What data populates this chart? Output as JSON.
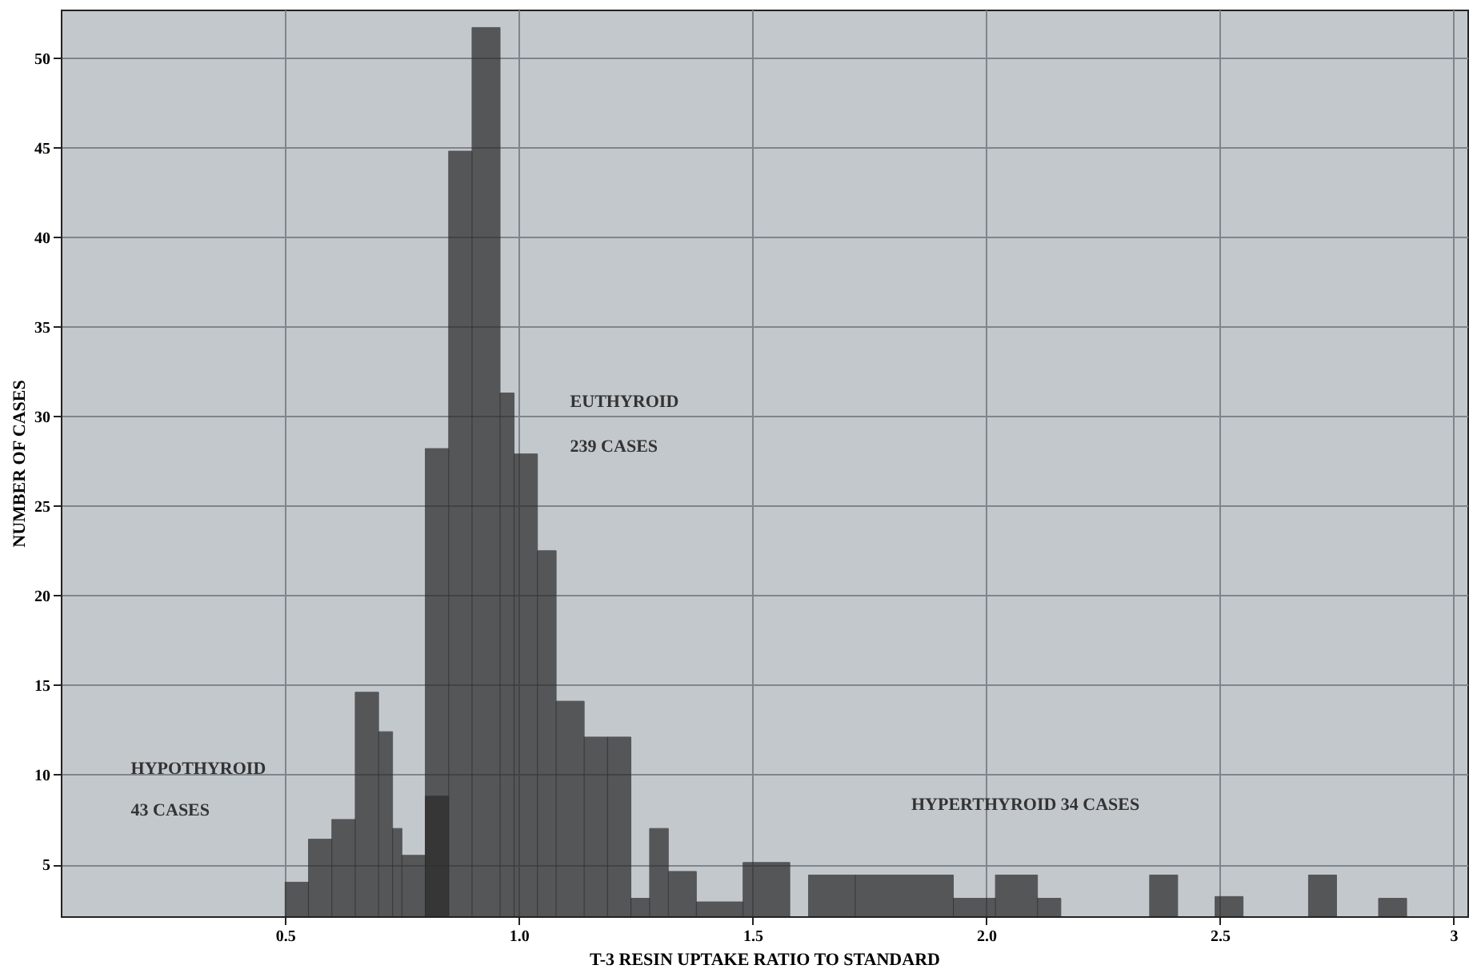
{
  "chart_data": {
    "type": "histogram",
    "xlabel": "T-3 RESIN UPTAKE RATIO TO STANDARD",
    "ylabel": "NUMBER OF CASES",
    "xlim": [
      0.02,
      3.03
    ],
    "ylim": [
      2.1,
      52.7
    ],
    "xticks": [
      0.5,
      {
        "value": 1,
        "label": "1.0"
      },
      1.5,
      {
        "value": 2,
        "label": "2.0"
      },
      2.5,
      3
    ],
    "yticks": [
      5,
      10,
      15,
      20,
      25,
      30,
      35,
      40,
      45,
      50
    ],
    "grid": true,
    "bins": [
      0.5,
      0.55,
      0.6,
      0.65,
      0.7,
      0.73,
      0.75,
      0.8,
      0.85,
      0.9,
      0.96,
      0.99,
      1.04,
      1.08,
      1.14,
      1.19,
      1.24,
      1.28,
      1.32,
      1.38,
      1.48,
      1.58,
      1.62,
      1.72,
      1.93,
      2.02,
      2.11,
      2.16,
      2.35,
      2.41,
      2.49,
      2.55,
      2.69,
      2.75,
      2.84,
      2.9
    ],
    "series": [
      {
        "color": "#2b2b2b",
        "values": [
          4.0,
          6.4,
          7.5,
          14.6,
          12.4,
          7.0,
          5.5,
          8.8,
          null,
          null,
          null,
          null,
          null,
          null,
          null,
          null,
          null,
          null,
          null,
          null,
          null,
          null,
          null,
          null,
          null,
          null,
          null,
          null,
          null,
          null,
          null,
          null,
          null,
          null,
          null
        ]
      },
      {
        "color": "#2b2b2b",
        "values": [
          null,
          null,
          null,
          null,
          null,
          null,
          null,
          28.2,
          44.8,
          51.7,
          31.3,
          27.9,
          22.5,
          14.1,
          12.1,
          12.1,
          null,
          null,
          null,
          null,
          null,
          null,
          null,
          null,
          null,
          null,
          null,
          null,
          null,
          null,
          null,
          null,
          null,
          null,
          null
        ]
      },
      {
        "color": "#2b2b2b",
        "values": [
          null,
          null,
          null,
          null,
          null,
          null,
          null,
          null,
          null,
          null,
          null,
          null,
          null,
          null,
          null,
          null,
          3.1,
          7.0,
          4.6,
          2.9,
          5.1,
          null,
          4.4,
          4.4,
          3.1,
          4.4,
          3.1,
          null,
          4.4,
          null,
          3.2,
          null,
          4.4,
          null,
          3.1
        ]
      }
    ],
    "annotations": [
      "HYPOTHYROID",
      "43 CASES",
      "EUTHYROID",
      "239 CASES",
      "HYPERTHYROID    34 CASES"
    ]
  }
}
